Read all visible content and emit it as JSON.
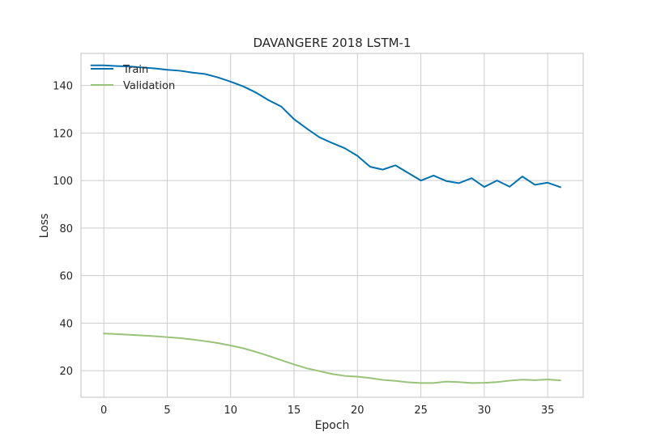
{
  "chart_data": {
    "type": "line",
    "title": "DAVANGERE 2018 LSTM-1",
    "xlabel": "Epoch",
    "ylabel": "Loss",
    "xlim": [
      -1.8,
      37.8
    ],
    "ylim": [
      8.8,
      153.5
    ],
    "xticks": [
      0,
      5,
      10,
      15,
      20,
      25,
      30,
      35
    ],
    "yticks": [
      20,
      40,
      60,
      80,
      100,
      120,
      140
    ],
    "grid": true,
    "legend": "top-left",
    "series": [
      {
        "name": "Train",
        "color": "#0072b2",
        "x": [
          -1,
          0,
          1,
          2,
          3,
          4,
          5,
          6,
          7,
          8,
          9,
          10,
          11,
          12,
          13,
          14,
          15,
          16,
          17,
          18,
          19,
          20,
          21,
          22,
          23,
          24,
          25,
          26,
          27,
          28,
          29,
          30,
          31,
          32,
          33,
          34,
          35,
          36
        ],
        "values": [
          148.5,
          148.5,
          148.2,
          148.0,
          147.6,
          147.2,
          146.6,
          146.2,
          145.4,
          144.8,
          143.4,
          141.6,
          139.6,
          137.0,
          133.8,
          131.1,
          125.8,
          121.9,
          118.2,
          115.8,
          113.6,
          110.4,
          105.8,
          104.6,
          106.4,
          103.2,
          100.0,
          102.1,
          99.8,
          98.9,
          101.0,
          97.3,
          100.0,
          97.4,
          101.7,
          98.2,
          99.1,
          97.2
        ]
      },
      {
        "name": "Validation",
        "color": "#98c379",
        "x": [
          0,
          1,
          2,
          3,
          4,
          5,
          6,
          7,
          8,
          9,
          10,
          11,
          12,
          13,
          14,
          15,
          16,
          17,
          18,
          19,
          20,
          21,
          22,
          23,
          24,
          25,
          26,
          27,
          28,
          29,
          30,
          31,
          32,
          33,
          34,
          35,
          36
        ],
        "values": [
          35.6,
          35.4,
          35.1,
          34.8,
          34.5,
          34.1,
          33.7,
          33.1,
          32.4,
          31.6,
          30.6,
          29.4,
          27.9,
          26.2,
          24.4,
          22.6,
          21.0,
          19.8,
          18.6,
          17.8,
          17.5,
          16.9,
          16.1,
          15.7,
          15.1,
          14.8,
          14.8,
          15.4,
          15.2,
          14.8,
          14.9,
          15.2,
          15.8,
          16.2,
          16.0,
          16.3,
          15.9
        ]
      }
    ]
  }
}
